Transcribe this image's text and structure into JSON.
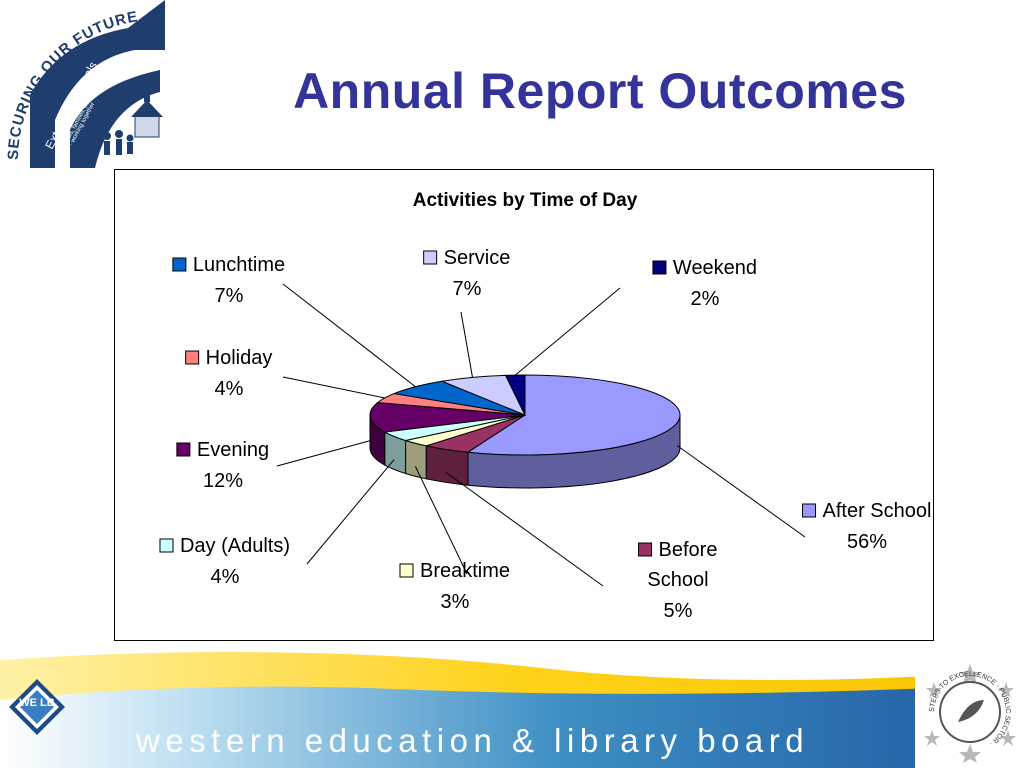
{
  "title": "Annual Report Outcomes",
  "logo": {
    "text": "SECURING OUR FUTURE",
    "sub": "Extended Schools",
    "tag1": "schools, families, communities",
    "tag2": "- working together"
  },
  "chart_data": {
    "type": "pie",
    "title": "Activities by Time of Day",
    "legend": "none",
    "slices": [
      {
        "label": "After School",
        "value": 56,
        "color": "#9999ff"
      },
      {
        "label": "Before School",
        "value": 5,
        "color": "#993366"
      },
      {
        "label": "Breaktime",
        "value": 3,
        "color": "#ffffcc"
      },
      {
        "label": "Day (Adults)",
        "value": 4,
        "color": "#ccffff"
      },
      {
        "label": "Evening",
        "value": 12,
        "color": "#660066"
      },
      {
        "label": "Holiday",
        "value": 4,
        "color": "#ff8080"
      },
      {
        "label": "Lunchtime",
        "value": 7,
        "color": "#0066cc"
      },
      {
        "label": "Service",
        "value": 7,
        "color": "#ccccff"
      },
      {
        "label": "Weekend",
        "value": 2,
        "color": "#000080"
      }
    ]
  },
  "footer": {
    "brand": "western education & library board",
    "badge_text": "WE LB",
    "seal_text": "STEPS TO EXCELLENCE · PUBLIC SECTOR ·"
  }
}
